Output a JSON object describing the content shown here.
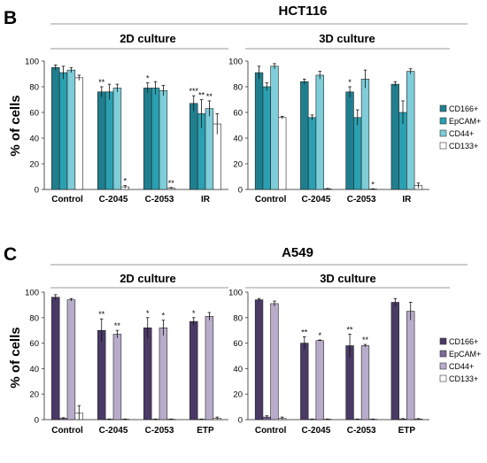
{
  "figure": {
    "panels": [
      {
        "letter": "B",
        "title": "HCT116",
        "ylabel": "% of cells",
        "legend": [
          "CD166+",
          "EpCAM+",
          "CD44+",
          "CD133+"
        ],
        "colors": [
          "#1f7f8f",
          "#2aa0b2",
          "#7ecdd8",
          "#ffffff"
        ]
      },
      {
        "letter": "C",
        "title": "A549",
        "ylabel": "% of cells",
        "legend": [
          "CD166+",
          "EpCAM+",
          "CD44+",
          "CD133+"
        ],
        "colors": [
          "#4a3a66",
          "#7b6a98",
          "#b8accb",
          "#ffffff"
        ]
      }
    ]
  },
  "chart_data": [
    {
      "type": "bar",
      "title": "2D culture",
      "ylim": [
        0,
        100
      ],
      "yticks": [
        0,
        20,
        40,
        60,
        80,
        100
      ],
      "categories": [
        "Control",
        "C-2045",
        "C-2053",
        "IR"
      ],
      "series": [
        {
          "name": "CD166+",
          "values": [
            95,
            76,
            79,
            67
          ],
          "errors": [
            2,
            4,
            4,
            6
          ],
          "sig": [
            "",
            "**",
            "*",
            "***"
          ]
        },
        {
          "name": "EpCAM+",
          "values": [
            91,
            76,
            79,
            59
          ],
          "errors": [
            5,
            6,
            5,
            11
          ],
          "sig": [
            "",
            "",
            "",
            "**"
          ]
        },
        {
          "name": "CD44+",
          "values": [
            93,
            79,
            77,
            63
          ],
          "errors": [
            2,
            3,
            4,
            6
          ],
          "sig": [
            "",
            "",
            "",
            "**"
          ]
        },
        {
          "name": "CD133+",
          "values": [
            87,
            2,
            1,
            51
          ],
          "errors": [
            2,
            1,
            0.5,
            8
          ],
          "sig": [
            "",
            "*",
            "**",
            ""
          ]
        }
      ]
    },
    {
      "type": "bar",
      "title": "3D culture",
      "ylim": [
        0,
        100
      ],
      "yticks": [
        0,
        20,
        40,
        60,
        80,
        100
      ],
      "categories": [
        "Control",
        "C-2045",
        "C-2053",
        "IR"
      ],
      "series": [
        {
          "name": "CD166+",
          "values": [
            91,
            84,
            76,
            82
          ],
          "errors": [
            5,
            2,
            4,
            2
          ],
          "sig": [
            "",
            "",
            "*",
            ""
          ]
        },
        {
          "name": "EpCAM+",
          "values": [
            80,
            56,
            56,
            60
          ],
          "errors": [
            3,
            2,
            6,
            9
          ],
          "sig": [
            "",
            "",
            "",
            ""
          ]
        },
        {
          "name": "CD44+",
          "values": [
            96,
            89,
            86,
            92
          ],
          "errors": [
            2,
            3,
            7,
            2
          ],
          "sig": [
            "",
            "",
            "",
            ""
          ]
        },
        {
          "name": "CD133+",
          "values": [
            56,
            0.5,
            0.3,
            3
          ],
          "errors": [
            1,
            0.3,
            0.2,
            2
          ],
          "sig": [
            "",
            "",
            "*",
            ""
          ]
        }
      ]
    },
    {
      "type": "bar",
      "title": "2D culture",
      "ylim": [
        0,
        100
      ],
      "yticks": [
        0,
        20,
        40,
        60,
        80,
        100
      ],
      "categories": [
        "Control",
        "C-2045",
        "C-2053",
        "ETP"
      ],
      "series": [
        {
          "name": "CD166+",
          "values": [
            96,
            70,
            72,
            77
          ],
          "errors": [
            2,
            9,
            8,
            3
          ],
          "sig": [
            "",
            "**",
            "*",
            "*"
          ]
        },
        {
          "name": "EpCAM+",
          "values": [
            1,
            0.3,
            0.3,
            0.3
          ],
          "errors": [
            0.5,
            0.2,
            0.2,
            0.2
          ],
          "sig": [
            "",
            "",
            "",
            ""
          ]
        },
        {
          "name": "CD44+",
          "values": [
            94,
            67,
            72,
            81
          ],
          "errors": [
            1,
            3,
            6,
            3
          ],
          "sig": [
            "",
            "**",
            "*",
            ""
          ]
        },
        {
          "name": "CD133+",
          "values": [
            5,
            0.3,
            0.3,
            1
          ],
          "errors": [
            6,
            0.2,
            0.2,
            1
          ],
          "sig": [
            "",
            "",
            "",
            ""
          ]
        }
      ]
    },
    {
      "type": "bar",
      "title": "3D culture",
      "ylim": [
        0,
        100
      ],
      "yticks": [
        0,
        20,
        40,
        60,
        80,
        100
      ],
      "categories": [
        "Control",
        "C-2045",
        "C-2053",
        "ETP"
      ],
      "series": [
        {
          "name": "CD166+",
          "values": [
            94,
            60,
            58,
            92
          ],
          "errors": [
            1,
            5,
            9,
            3
          ],
          "sig": [
            "",
            "**",
            "**",
            ""
          ]
        },
        {
          "name": "EpCAM+",
          "values": [
            2,
            0.3,
            0.3,
            0.5
          ],
          "errors": [
            1,
            0.2,
            0.2,
            0.3
          ],
          "sig": [
            "",
            "",
            "",
            ""
          ]
        },
        {
          "name": "CD44+",
          "values": [
            91,
            62,
            58,
            85
          ],
          "errors": [
            2,
            0.5,
            1,
            7
          ],
          "sig": [
            "",
            "*",
            "**",
            ""
          ]
        },
        {
          "name": "CD133+",
          "values": [
            1,
            0.3,
            0.3,
            0.5
          ],
          "errors": [
            1,
            0.2,
            0.2,
            0.3
          ],
          "sig": [
            "",
            "",
            "",
            ""
          ]
        }
      ]
    }
  ]
}
